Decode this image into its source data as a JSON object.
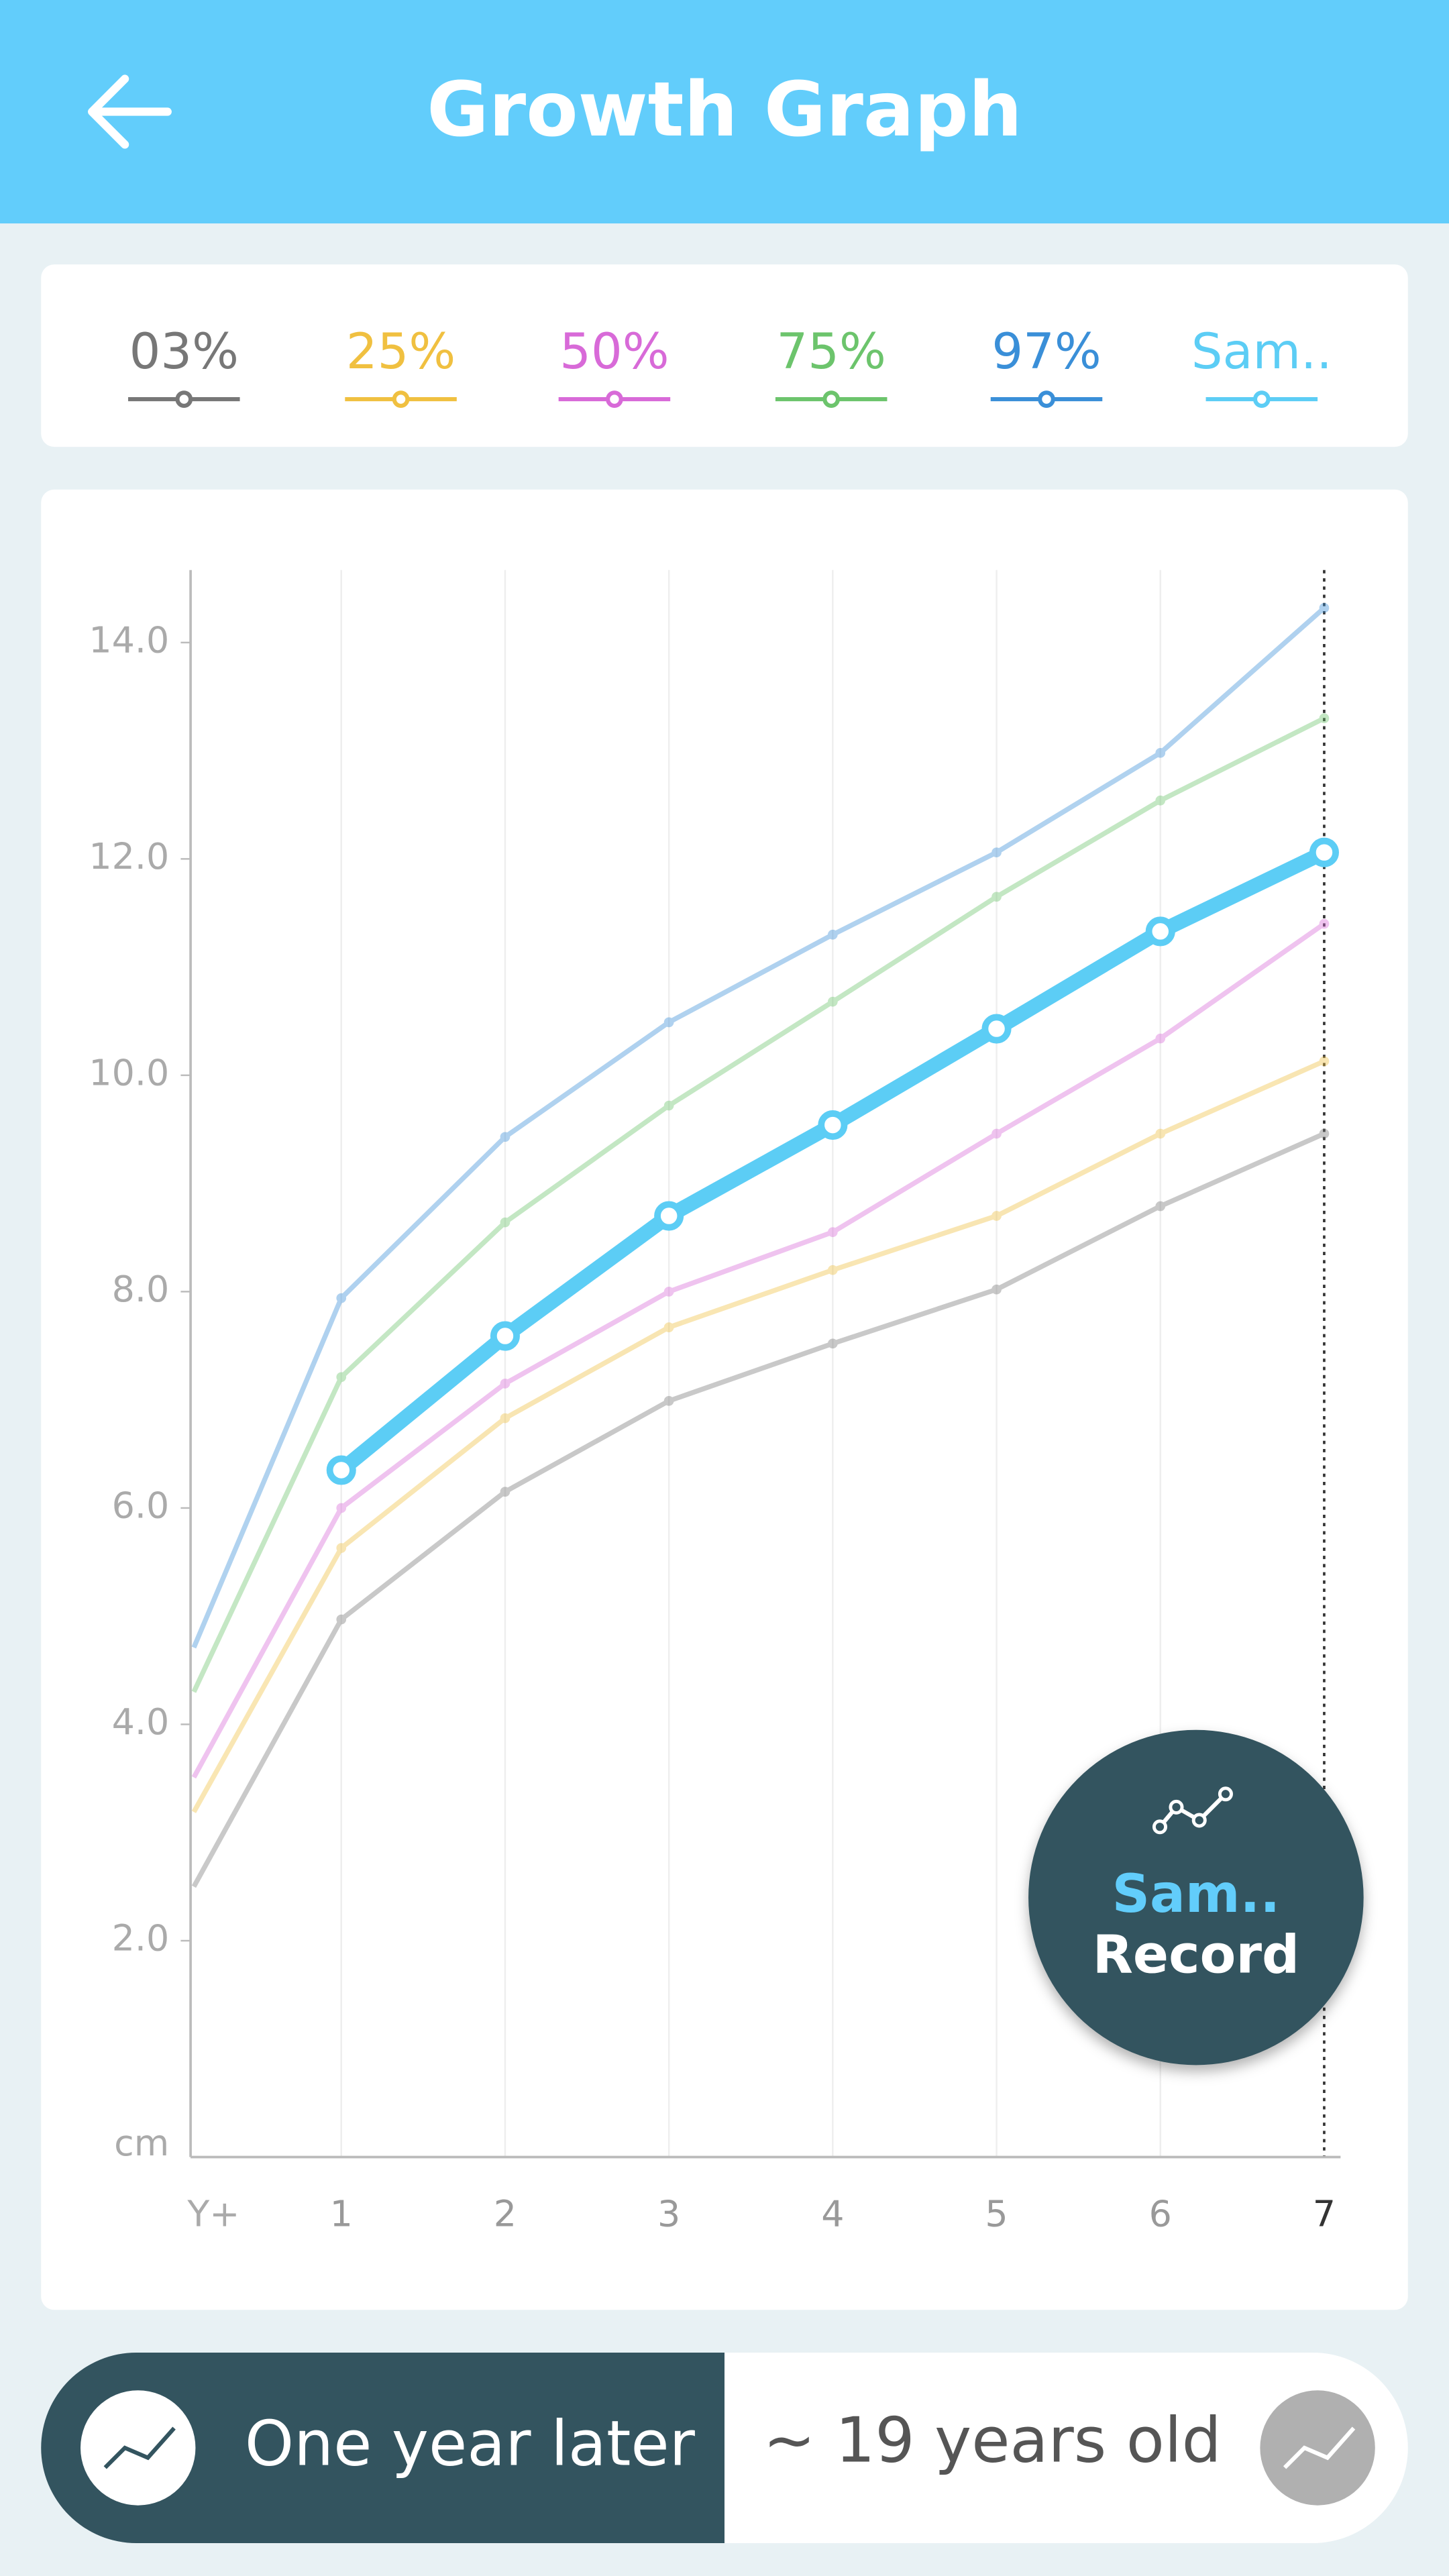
{
  "header": {
    "title": "Growth Graph"
  },
  "chart_data": {
    "type": "line",
    "x_label": "Y+",
    "y_label": "cm",
    "xlim": [
      0.08,
      7.1
    ],
    "xticks": [
      1,
      2,
      3,
      4,
      5,
      6,
      7
    ],
    "ylim": [
      0,
      14.67
    ],
    "yticks": [
      {
        "value": 2,
        "label": "2.0"
      },
      {
        "value": 4,
        "label": "4.0"
      },
      {
        "value": 6,
        "label": "6.0"
      },
      {
        "value": 8,
        "label": "8.0"
      },
      {
        "value": 10,
        "label": "10.0"
      },
      {
        "value": 12,
        "label": "12.0"
      },
      {
        "value": 14,
        "label": "14.0"
      }
    ],
    "grid": true,
    "series": [
      {
        "name": "03%",
        "color": "#777777",
        "x": [
          0.1,
          1,
          2,
          3,
          4,
          5,
          6,
          7
        ],
        "values": [
          2.5,
          4.97,
          6.15,
          6.99,
          7.52,
          8.02,
          8.79,
          9.46
        ]
      },
      {
        "name": "25%",
        "color": "#f0c040",
        "x": [
          0.1,
          1,
          2,
          3,
          4,
          5,
          6,
          7
        ],
        "values": [
          3.19,
          5.63,
          6.83,
          7.67,
          8.2,
          8.7,
          9.46,
          10.13
        ]
      },
      {
        "name": "50%",
        "color": "#d86ad8",
        "x": [
          0.1,
          1,
          2,
          3,
          4,
          5,
          6,
          7
        ],
        "values": [
          3.51,
          6.0,
          7.15,
          8.0,
          8.55,
          9.46,
          10.34,
          11.4
        ]
      },
      {
        "name": "75%",
        "color": "#6cc46c",
        "x": [
          0.1,
          1,
          2,
          3,
          4,
          5,
          6,
          7
        ],
        "values": [
          4.3,
          7.21,
          8.64,
          9.72,
          10.68,
          11.65,
          12.54,
          13.3
        ]
      },
      {
        "name": "97%",
        "color": "#3a8fd8",
        "x": [
          0.1,
          1,
          2,
          3,
          4,
          5,
          6,
          7
        ],
        "values": [
          4.71,
          7.94,
          9.43,
          10.49,
          11.3,
          12.06,
          12.98,
          14.32
        ]
      },
      {
        "name": "Sam..",
        "color": "#5ccdf5",
        "x": [
          1,
          2,
          3,
          4,
          5,
          6,
          7
        ],
        "values": [
          6.35,
          7.59,
          8.7,
          9.54,
          10.43,
          11.33,
          12.06
        ]
      }
    ]
  },
  "fab": {
    "name": "Sam..",
    "label": "Record"
  },
  "bottom": {
    "left": "One year later",
    "right": "~ 19 years old"
  }
}
